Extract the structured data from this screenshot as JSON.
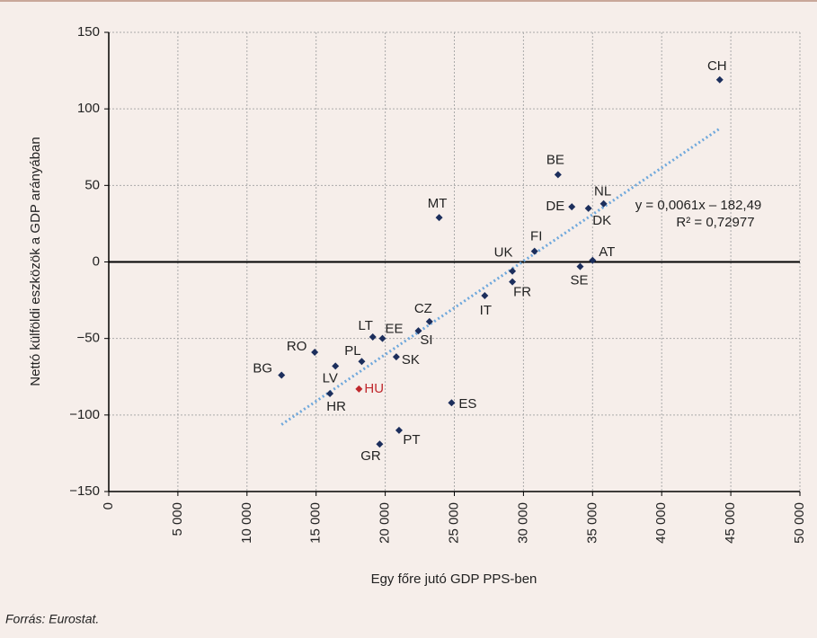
{
  "chart_data": {
    "type": "scatter",
    "xlabel": "Egy főre jutó GDP PPS-ben",
    "ylabel": "Nettó külföldi eszközök a GDP arányában",
    "source": "Forrás: Eurostat.",
    "labels": [
      "CH",
      "BE",
      "DE",
      "NL",
      "DK",
      "MT",
      "FI",
      "UK",
      "AT",
      "SE",
      "FR",
      "IT",
      "CZ",
      "SI",
      "EE",
      "LT",
      "SK",
      "PL",
      "RO",
      "LV",
      "BG",
      "HR",
      "HU",
      "ES",
      "PT",
      "GR"
    ],
    "x": [
      44200,
      32500,
      33500,
      35800,
      34700,
      23900,
      30800,
      29200,
      35000,
      34100,
      29200,
      27200,
      23200,
      22400,
      19800,
      19100,
      20800,
      18300,
      14900,
      16400,
      12500,
      16000,
      18100,
      24800,
      21000,
      19600
    ],
    "values": [
      119,
      57,
      36,
      38,
      35,
      29,
      7,
      -6,
      1,
      -3,
      -13,
      -22,
      -39,
      -45,
      -50,
      -49,
      -62,
      -65,
      -59,
      -68,
      -74,
      -86,
      -83,
      -92,
      -110,
      -119
    ],
    "colors": [
      "#1c2e5c",
      "#1c2e5c",
      "#1c2e5c",
      "#1c2e5c",
      "#1c2e5c",
      "#1c2e5c",
      "#1c2e5c",
      "#1c2e5c",
      "#1c2e5c",
      "#1c2e5c",
      "#1c2e5c",
      "#1c2e5c",
      "#1c2e5c",
      "#1c2e5c",
      "#1c2e5c",
      "#1c2e5c",
      "#1c2e5c",
      "#1c2e5c",
      "#1c2e5c",
      "#1c2e5c",
      "#1c2e5c",
      "#1c2e5c",
      "#c0282d",
      "#1c2e5c",
      "#1c2e5c",
      "#1c2e5c"
    ],
    "trendline": {
      "slope": 0.0061,
      "intercept": -182.49,
      "x": [
        12500,
        44200
      ],
      "color": "#6fa8dc",
      "equation": "y = 0,0061x – 182,49",
      "r2": "R² = 0,72977"
    },
    "xlim": [
      0,
      50000
    ],
    "xticks": [
      0,
      {
        "value": 5000,
        "label": "5 000"
      },
      {
        "value": 10000,
        "label": "10 000"
      },
      {
        "value": 15000,
        "label": "15 000"
      },
      {
        "value": 20000,
        "label": "20 000"
      },
      {
        "value": 25000,
        "label": "25 000"
      },
      {
        "value": 30000,
        "label": "30 000"
      },
      {
        "value": 35000,
        "label": "35 000"
      },
      {
        "value": 40000,
        "label": "40 000"
      },
      {
        "value": 45000,
        "label": "45 000"
      },
      {
        "value": 50000,
        "label": "50 000"
      }
    ],
    "ylim": [
      -150,
      150
    ],
    "yticks": [
      {
        "value": -150,
        "label": "−150"
      },
      {
        "value": -100,
        "label": "−100"
      },
      {
        "value": -50,
        "label": "−50"
      },
      0,
      50,
      100,
      150
    ],
    "grid": true
  }
}
